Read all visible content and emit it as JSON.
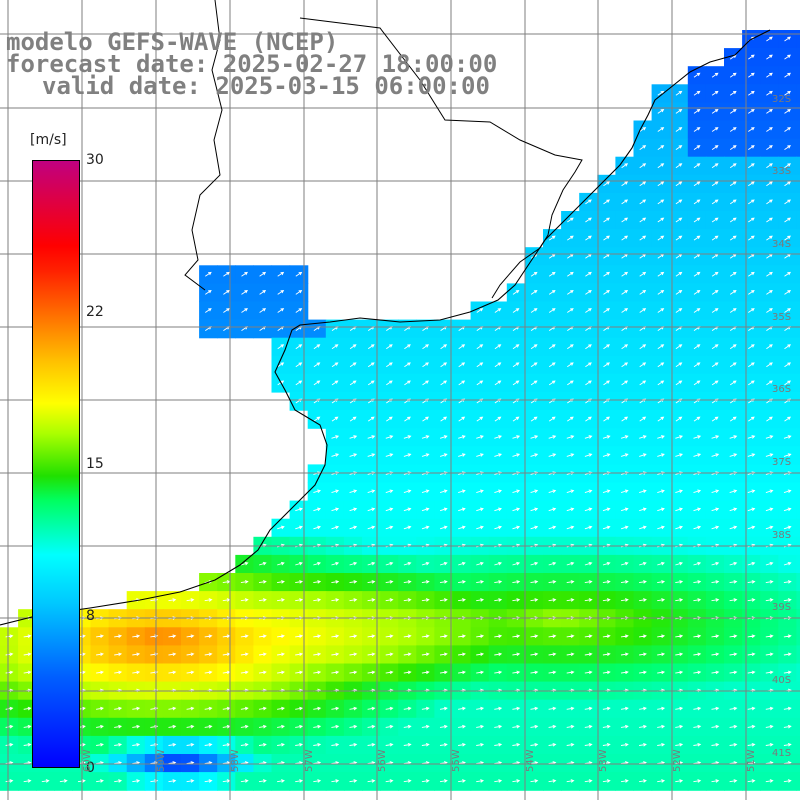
{
  "title": {
    "line1": "modelo GEFS-WAVE (NCEP)",
    "line2": "forecast date: 2025-02-27 18:00:00",
    "line3": "valid date: 2025-03-15 06:00:00"
  },
  "colorbar": {
    "units": "[m/s]",
    "ticks": [
      "30",
      "22",
      "15",
      "8",
      "0"
    ],
    "range": [
      0,
      30
    ]
  },
  "grid": {
    "lat_labels": [
      "32S",
      "33S",
      "34S",
      "35S",
      "36S",
      "37S",
      "38S",
      "39S",
      "40S",
      "41S"
    ],
    "lon_labels": [
      "60W",
      "59W",
      "58W",
      "57W",
      "56W",
      "55W",
      "54W",
      "53W",
      "52W",
      "51W",
      "50W"
    ]
  },
  "colors": {
    "land": "#ffffff",
    "coastline": "#000000",
    "grid_line": "#7f7f7f",
    "arrow": "#ffffff",
    "label_gray": "#808080"
  }
}
